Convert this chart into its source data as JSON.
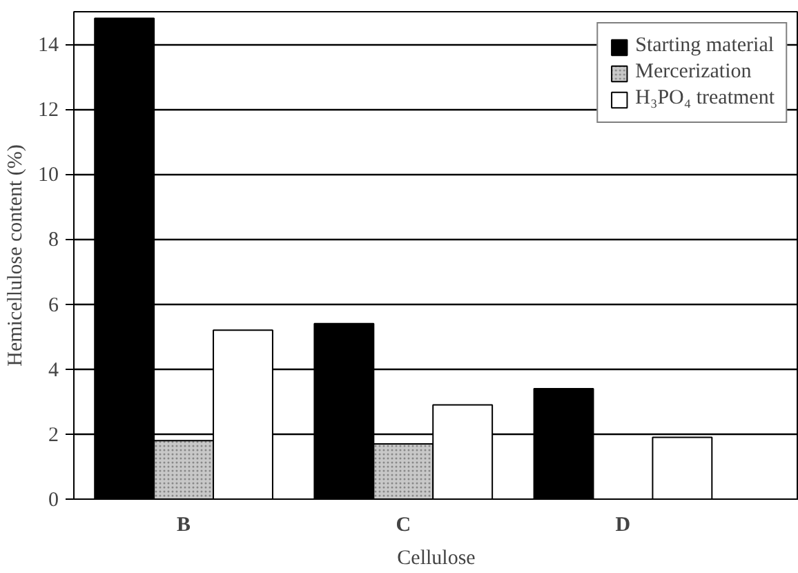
{
  "chart_data": {
    "type": "bar",
    "xlabel": "Cellulose",
    "ylabel": "Hemicellulose content (%)",
    "categories": [
      "B",
      "C",
      "D"
    ],
    "series": [
      {
        "name": "Starting material",
        "color": "#000000",
        "values": [
          14.8,
          5.4,
          3.4
        ]
      },
      {
        "name": "Mercerization",
        "color": "#c8c8c8",
        "values": [
          1.8,
          1.7,
          null
        ]
      },
      {
        "name": "H₃PO₄ treatment",
        "color": "#ffffff",
        "values": [
          5.2,
          2.9,
          1.9
        ]
      }
    ],
    "ylim": [
      0,
      15
    ],
    "yticks": [
      0,
      2,
      4,
      6,
      8,
      10,
      12,
      14
    ],
    "grid": "y",
    "legend": "top right"
  }
}
